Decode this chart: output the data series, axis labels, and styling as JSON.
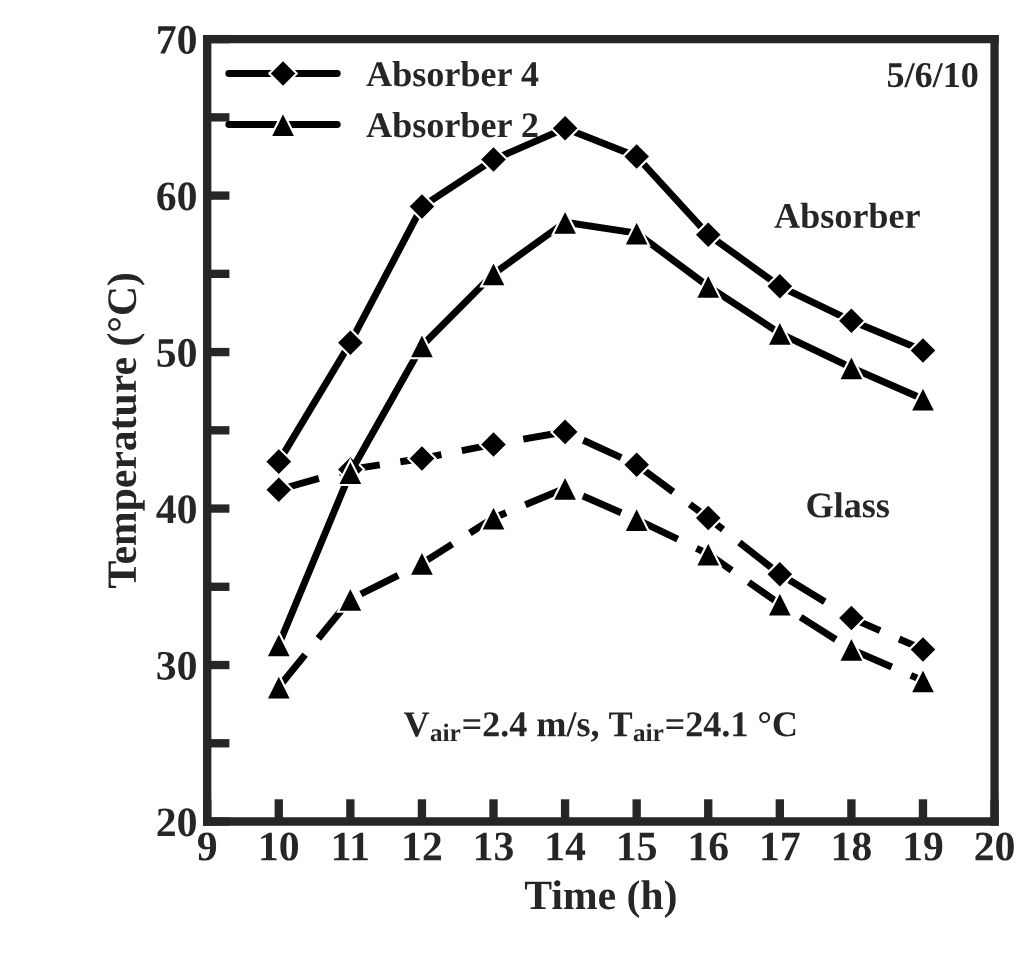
{
  "chart_data": {
    "type": "line",
    "xlabel": "Time (h)",
    "ylabel": "Temperature (°C)",
    "x": [
      10,
      11,
      12,
      13,
      14,
      15,
      16,
      17,
      18,
      19
    ],
    "series": [
      {
        "name": "Absorber 4",
        "color": "#000000",
        "marker": "diamond",
        "line_style": "solid",
        "values": [
          43,
          50.6,
          59.3,
          62.3,
          64.3,
          62.5,
          57.5,
          54.2,
          52,
          50.1
        ]
      },
      {
        "name": "Absorber 2",
        "color": "#000000",
        "marker": "triangle",
        "line_style": "solid",
        "values": [
          31.3,
          42.3,
          50.4,
          55,
          58.3,
          57.6,
          54.2,
          51.2,
          49,
          47
        ]
      },
      {
        "color": "#000000",
        "marker": "diamond",
        "line_style": "dashed",
        "values": [
          41.2,
          42.5,
          43.2,
          44.1,
          44.9,
          42.8,
          39.4,
          35.8,
          33,
          31
        ]
      },
      {
        "color": "#000000",
        "marker": "triangle",
        "line_style": "dashed",
        "values": [
          28.6,
          34.2,
          36.5,
          39.4,
          41.3,
          39.3,
          37.1,
          33.9,
          31,
          29
        ]
      }
    ],
    "xlim": [
      9,
      20
    ],
    "xticks": [
      9,
      10,
      11,
      12,
      13,
      14,
      15,
      16,
      17,
      18,
      19,
      20
    ],
    "ylim": [
      20,
      70
    ],
    "yticks": [
      20,
      {
        "value": 25,
        "label": null
      },
      30,
      {
        "value": 35,
        "label": null
      },
      40,
      {
        "value": 45,
        "label": null
      },
      50,
      {
        "value": 55,
        "label": null
      },
      60,
      {
        "value": 65,
        "label": null
      },
      70
    ],
    "annotations": [
      {
        "text": "5/6/10"
      },
      "Absorber",
      "Glass",
      {
        "text": "V$_{air}$=2.4 m/s, T$_{air}$=24.1 °C"
      }
    ],
    "legend": "top left",
    "grid": false
  }
}
